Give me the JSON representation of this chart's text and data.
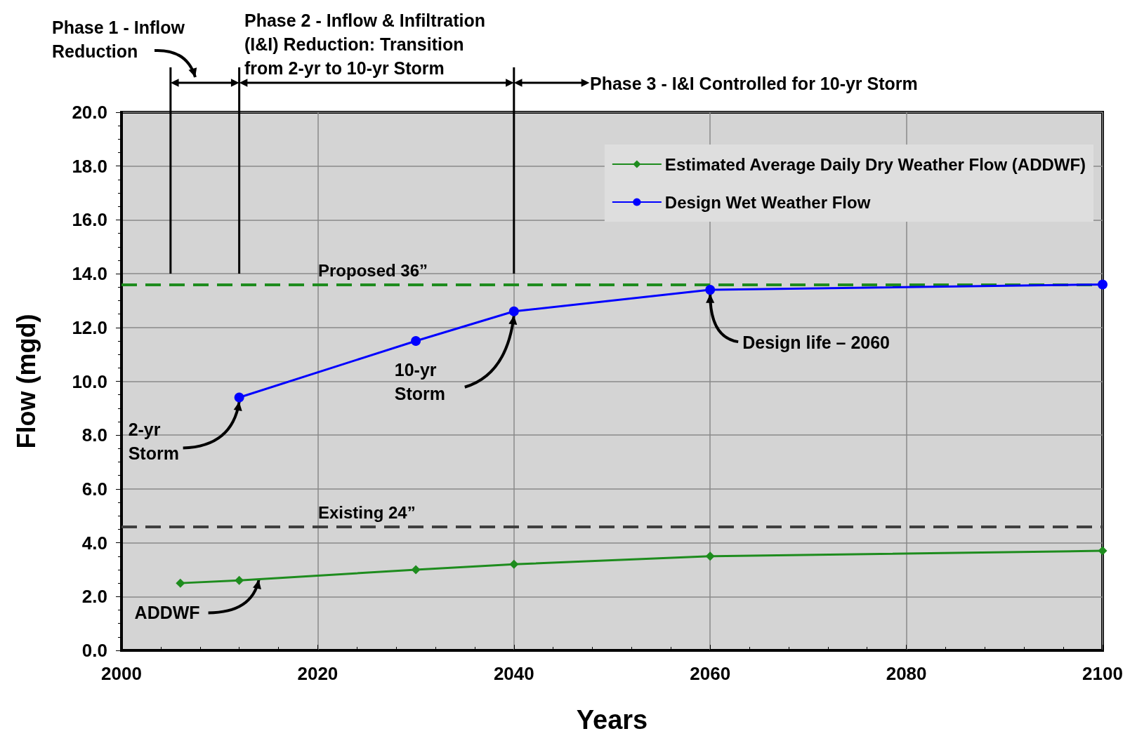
{
  "chart_data": {
    "type": "line",
    "xlabel": "Years",
    "ylabel": "Flow (mgd)",
    "xlim": [
      2000,
      2100
    ],
    "xticks": [
      2000,
      2020,
      2040,
      2060,
      2080,
      2100
    ],
    "ylim": [
      0,
      20
    ],
    "yticks": [
      {
        "value": 0,
        "label": "0.0"
      },
      {
        "value": 2,
        "label": "2.0"
      },
      {
        "value": 4,
        "label": "4.0"
      },
      {
        "value": 6,
        "label": "6.0"
      },
      {
        "value": 8,
        "label": "8.0"
      },
      {
        "value": 10,
        "label": "10.0"
      },
      {
        "value": 12,
        "label": "12.0"
      },
      {
        "value": 14,
        "label": "14.0"
      },
      {
        "value": 16,
        "label": "16.0"
      },
      {
        "value": 18,
        "label": "18.0"
      },
      {
        "value": 20,
        "label": "20.0"
      }
    ],
    "grid": true,
    "legend": "top right",
    "line_style": "solid",
    "series": [
      {
        "name": "Estimated Average Daily Dry Weather Flow (ADDWF)",
        "color": "#1e8c1e",
        "marker": "diamond",
        "x": [
          2006,
          2012,
          2030,
          2040,
          2060,
          2100
        ],
        "values": [
          2.5,
          2.6,
          3.0,
          3.2,
          3.5,
          3.7
        ]
      },
      {
        "name": "Design Wet Weather Flow",
        "color": "#0000ff",
        "marker": "circle",
        "x": [
          2012,
          2030,
          2040,
          2060,
          2100
        ],
        "values": [
          9.4,
          11.5,
          12.6,
          13.4,
          13.6
        ]
      }
    ],
    "ref_lines": [
      {
        "axis": "y",
        "value": 13.6,
        "label": "Proposed 36”",
        "color": "#1e8c1e",
        "line_style": "dashed"
      },
      {
        "axis": "y",
        "value": 4.6,
        "label": "Existing 24”",
        "color": "#404040",
        "line_style": "dashed"
      },
      {
        "axis": "x",
        "value": 2005,
        "color": "#000000",
        "line_style": "solid"
      },
      {
        "axis": "x",
        "value": 2012,
        "color": "#000000",
        "line_style": "solid"
      },
      {
        "axis": "x",
        "value": 2040,
        "color": "#000000",
        "line_style": "solid"
      }
    ],
    "annotations": [
      "Phase 1 - Inflow Reduction",
      "Phase 2 - Inflow & Infiltration (I&I) Reduction: Transition from 2-yr to 10-yr Storm",
      "Phase 3 - I&I Controlled for 10-yr Storm",
      {
        "text": "2-yr Storm",
        "x": 2012,
        "y": 9.4
      },
      {
        "text": "10-yr Storm",
        "x": 2040,
        "y": 12.6
      },
      {
        "text": "Design life – 2060",
        "x": 2060,
        "y": 13.4
      },
      {
        "text": "ADDWF",
        "x": 2014,
        "y": 2.7
      }
    ]
  }
}
